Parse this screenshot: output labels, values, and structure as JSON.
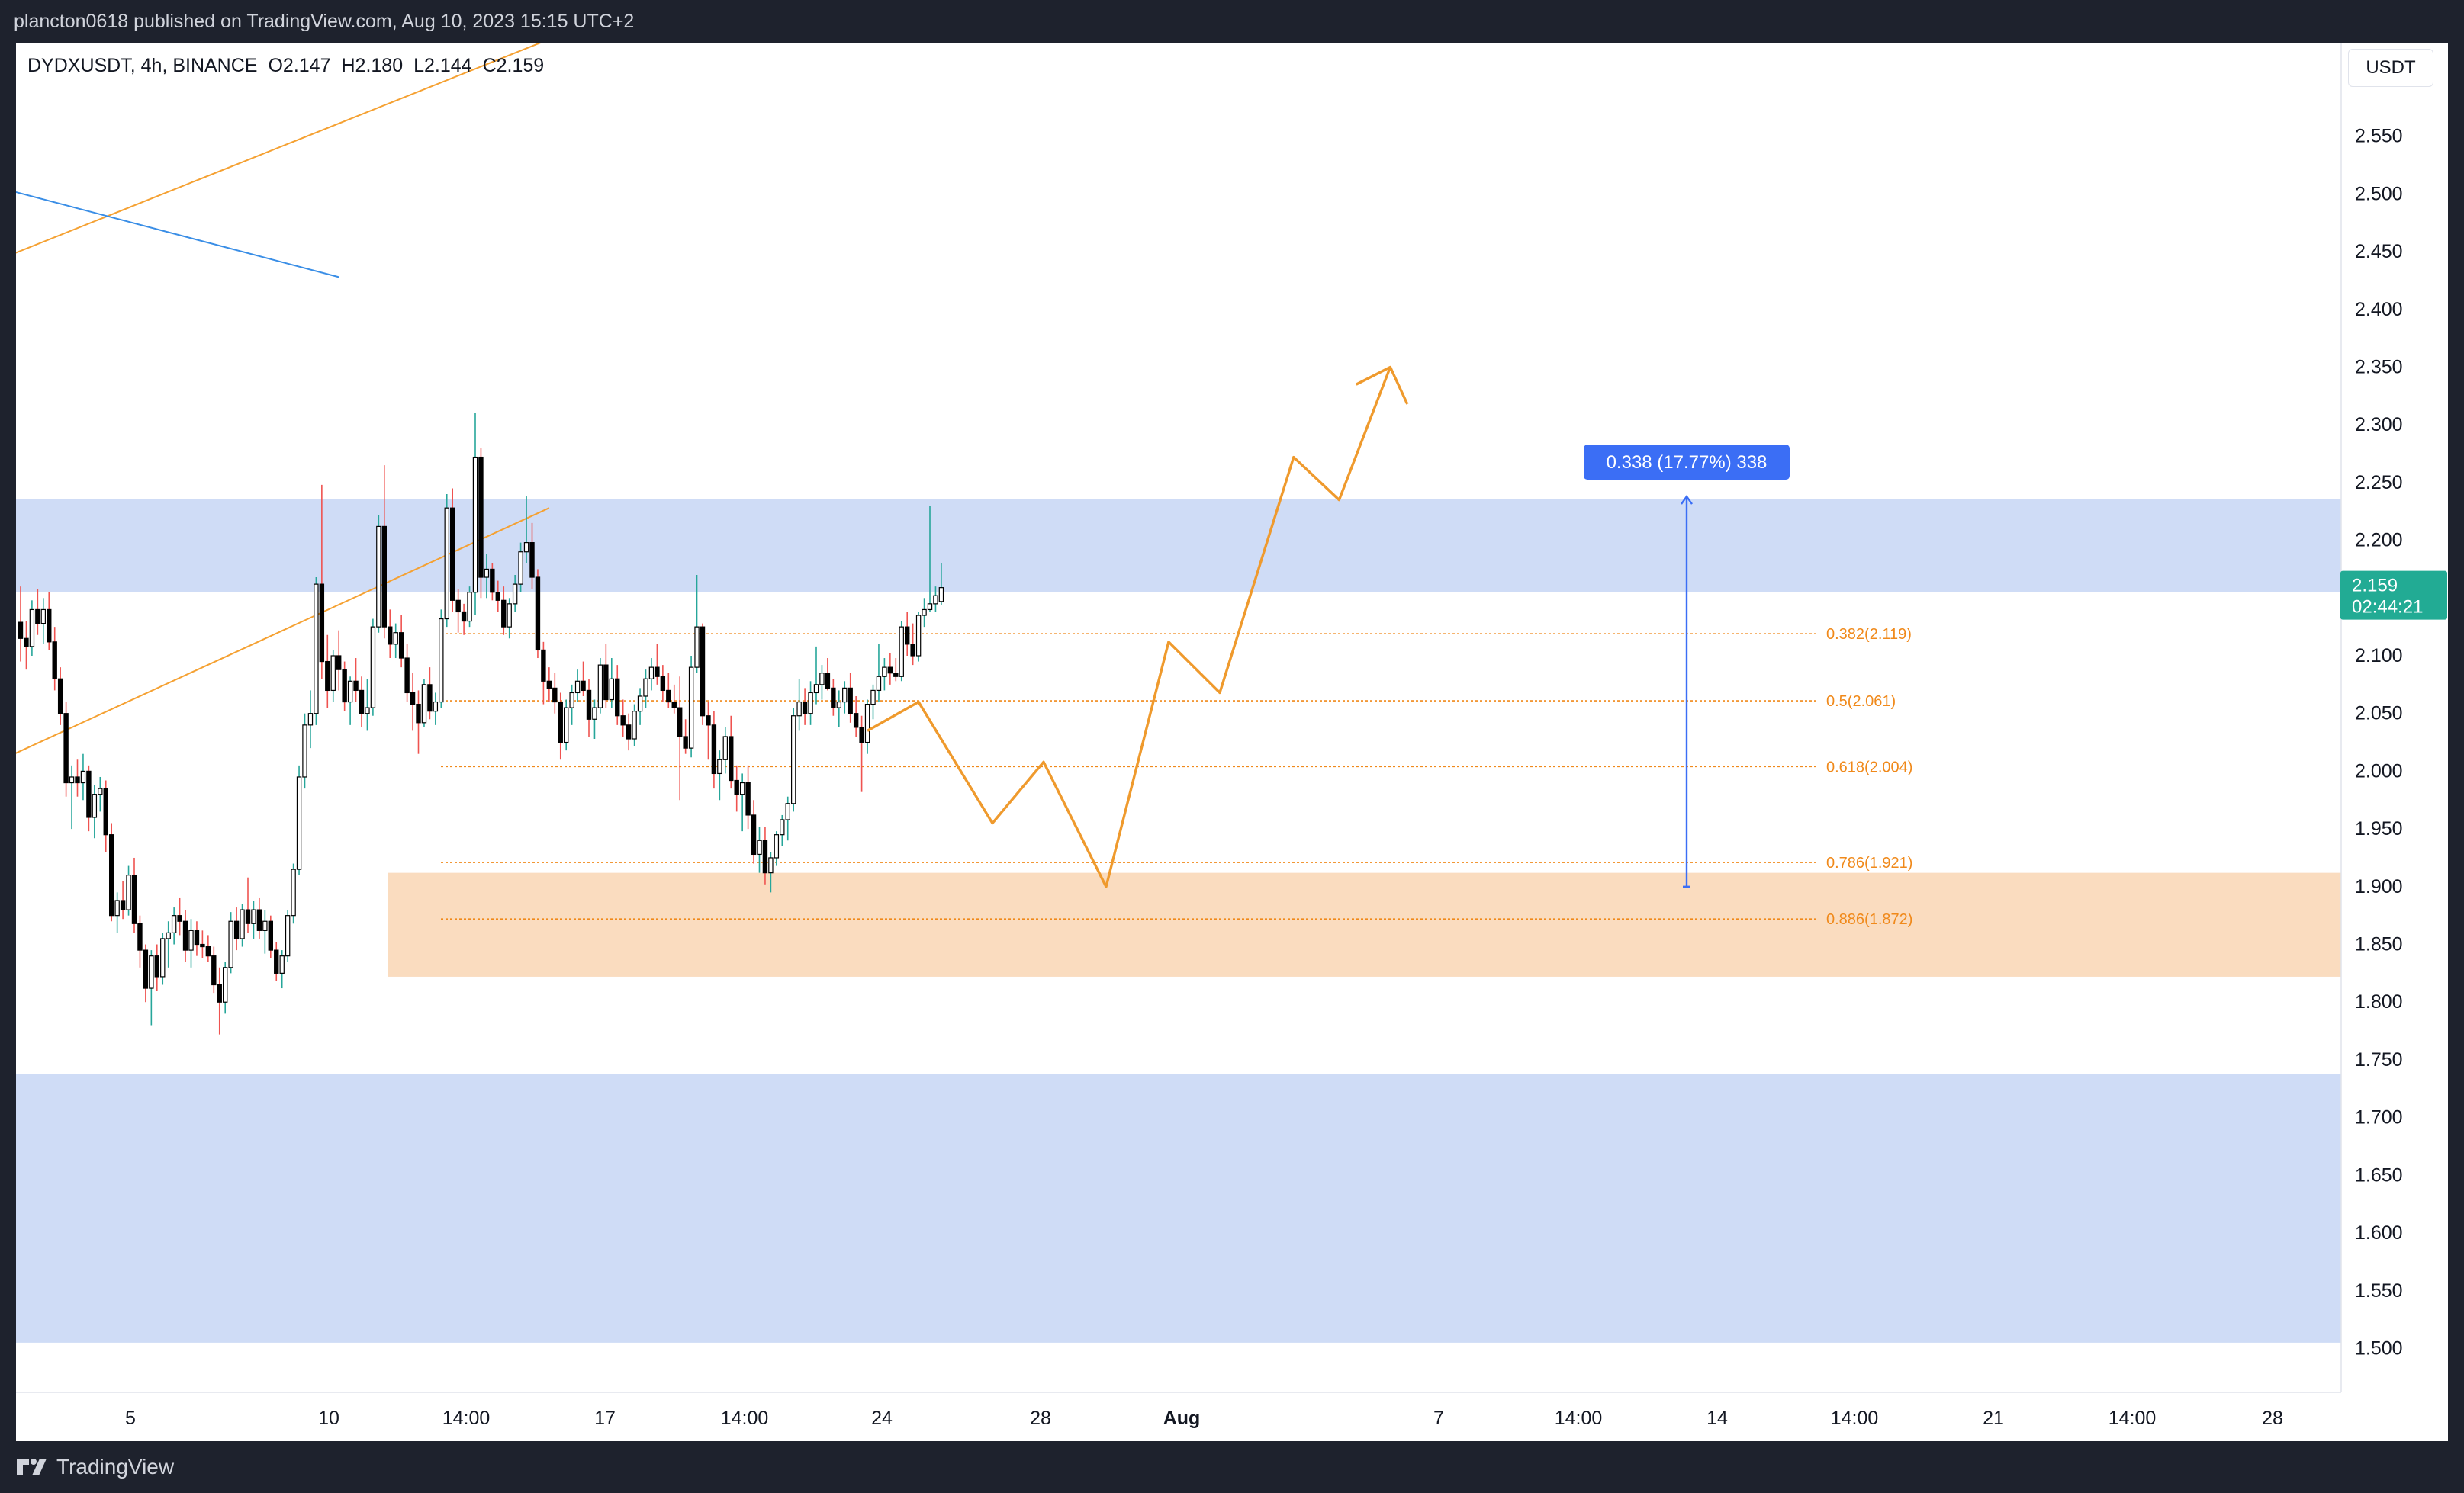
{
  "header": {
    "title": "plancton0618 published on TradingView.com, Aug 10, 2023 15:15 UTC+2"
  },
  "legend": {
    "symbol": "DYDXUSDT, 4h, BINANCE",
    "open": "O2.147",
    "high": "H2.180",
    "low": "L2.144",
    "close": "C2.159"
  },
  "currency": "USDT",
  "footer": {
    "brand": "TradingView"
  },
  "colors": {
    "up": "#26a69a",
    "down": "#ef5350",
    "candle_body_up": "#ffffff",
    "candle_body_down": "#000000",
    "zone_blue": "#cfdcf6",
    "zone_orange": "#fadcbf",
    "fib": "#f0891a",
    "trend_orange": "#f5a132",
    "trend_blue": "#3a8ee6",
    "measure": "#3b6ef5",
    "price_badge": "#22ab94"
  },
  "chart_data": {
    "type": "candlestick",
    "symbol": "DYDXUSDT",
    "timeframe": "4h",
    "exchange": "BINANCE",
    "ylim": [
      1.462,
      2.631
    ],
    "y_ticks": [
      "2.550",
      "2.500",
      "2.450",
      "2.400",
      "2.350",
      "2.300",
      "2.250",
      "2.200",
      "2.150",
      "2.100",
      "2.050",
      "2.000",
      "1.950",
      "1.900",
      "1.850",
      "1.800",
      "1.750",
      "1.700",
      "1.650",
      "1.600",
      "1.550",
      "1.500"
    ],
    "x_ticks": [
      "5",
      "10",
      "14:00",
      "17",
      "14:00",
      "24",
      "28",
      "Aug",
      "7",
      "14:00",
      "14",
      "14:00",
      "21",
      "14:00",
      "28"
    ],
    "x_tick_bold": "Aug",
    "last_price": {
      "value": 2.159,
      "label": "2.159",
      "countdown": "02:44:21"
    },
    "zones": [
      {
        "name": "resistance-zone",
        "color": "blue",
        "from": 2.155,
        "to": 2.236,
        "x_start": 0,
        "x_end": 1
      },
      {
        "name": "demand-zone",
        "color": "orange",
        "from": 1.822,
        "to": 1.912,
        "x_start": 0.16,
        "x_end": 1
      },
      {
        "name": "lower-zone",
        "color": "blue",
        "from": 1.505,
        "to": 1.738,
        "x_start": 0,
        "x_end": 1
      }
    ],
    "fib_levels": [
      {
        "ratio": 0.382,
        "value": 2.119,
        "label": "0.382(2.119)"
      },
      {
        "ratio": 0.5,
        "value": 2.061,
        "label": "0.5(2.061)"
      },
      {
        "ratio": 0.618,
        "value": 2.004,
        "label": "0.618(2.004)"
      },
      {
        "ratio": 0.786,
        "value": 1.921,
        "label": "0.786(1.921)"
      },
      {
        "ratio": 0.886,
        "value": 1.872,
        "label": "0.886(1.872)"
      }
    ],
    "measure": {
      "label": "0.338 (17.77%) 338",
      "from": 1.9,
      "to": 2.238
    },
    "candles": [
      [
        2.129,
        2.16,
        2.095,
        2.115
      ],
      [
        2.115,
        2.13,
        2.088,
        2.108
      ],
      [
        2.108,
        2.148,
        2.1,
        2.14
      ],
      [
        2.14,
        2.158,
        2.118,
        2.128
      ],
      [
        2.128,
        2.15,
        2.11,
        2.14
      ],
      [
        2.14,
        2.155,
        2.105,
        2.112
      ],
      [
        2.112,
        2.125,
        2.07,
        2.08
      ],
      [
        2.08,
        2.09,
        2.04,
        2.05
      ],
      [
        2.05,
        2.06,
        1.978,
        1.99
      ],
      [
        1.99,
        2.005,
        1.95,
        1.995
      ],
      [
        1.995,
        2.01,
        1.978,
        1.99
      ],
      [
        1.99,
        2.015,
        1.975,
        2.0
      ],
      [
        2.0,
        2.005,
        1.948,
        1.96
      ],
      [
        1.96,
        1.988,
        1.942,
        1.98
      ],
      [
        1.98,
        1.995,
        1.965,
        1.985
      ],
      [
        1.985,
        1.992,
        1.93,
        1.945
      ],
      [
        1.945,
        1.955,
        1.87,
        1.875
      ],
      [
        1.875,
        1.895,
        1.86,
        1.888
      ],
      [
        1.888,
        1.905,
        1.872,
        1.88
      ],
      [
        1.88,
        1.918,
        1.875,
        1.91
      ],
      [
        1.91,
        1.925,
        1.86,
        1.868
      ],
      [
        1.868,
        1.875,
        1.83,
        1.845
      ],
      [
        1.845,
        1.85,
        1.8,
        1.812
      ],
      [
        1.812,
        1.845,
        1.78,
        1.84
      ],
      [
        1.84,
        1.85,
        1.81,
        1.822
      ],
      [
        1.822,
        1.86,
        1.815,
        1.855
      ],
      [
        1.855,
        1.87,
        1.83,
        1.86
      ],
      [
        1.86,
        1.882,
        1.85,
        1.875
      ],
      [
        1.875,
        1.89,
        1.858,
        1.87
      ],
      [
        1.87,
        1.88,
        1.835,
        1.845
      ],
      [
        1.845,
        1.872,
        1.83,
        1.862
      ],
      [
        1.862,
        1.87,
        1.84,
        1.85
      ],
      [
        1.85,
        1.862,
        1.838,
        1.848
      ],
      [
        1.848,
        1.858,
        1.835,
        1.84
      ],
      [
        1.84,
        1.848,
        1.808,
        1.815
      ],
      [
        1.815,
        1.83,
        1.772,
        1.8
      ],
      [
        1.8,
        1.835,
        1.79,
        1.83
      ],
      [
        1.83,
        1.878,
        1.825,
        1.87
      ],
      [
        1.87,
        1.882,
        1.845,
        1.855
      ],
      [
        1.855,
        1.885,
        1.848,
        1.88
      ],
      [
        1.88,
        1.908,
        1.86,
        1.868
      ],
      [
        1.868,
        1.888,
        1.855,
        1.88
      ],
      [
        1.88,
        1.89,
        1.855,
        1.862
      ],
      [
        1.862,
        1.88,
        1.842,
        1.87
      ],
      [
        1.87,
        1.875,
        1.838,
        1.845
      ],
      [
        1.845,
        1.852,
        1.818,
        1.825
      ],
      [
        1.825,
        1.845,
        1.812,
        1.84
      ],
      [
        1.84,
        1.88,
        1.835,
        1.875
      ],
      [
        1.875,
        1.92,
        1.868,
        1.915
      ],
      [
        1.915,
        2.005,
        1.91,
        1.995
      ],
      [
        1.995,
        2.05,
        1.985,
        2.04
      ],
      [
        2.04,
        2.07,
        2.02,
        2.05
      ],
      [
        2.05,
        2.168,
        2.04,
        2.162
      ],
      [
        2.162,
        2.248,
        2.08,
        2.095
      ],
      [
        2.095,
        2.118,
        2.055,
        2.07
      ],
      [
        2.07,
        2.105,
        2.06,
        2.1
      ],
      [
        2.1,
        2.122,
        2.07,
        2.088
      ],
      [
        2.088,
        2.095,
        2.052,
        2.06
      ],
      [
        2.06,
        2.082,
        2.04,
        2.078
      ],
      [
        2.078,
        2.098,
        2.06,
        2.07
      ],
      [
        2.07,
        2.082,
        2.038,
        2.05
      ],
      [
        2.05,
        2.08,
        2.035,
        2.055
      ],
      [
        2.055,
        2.132,
        2.048,
        2.125
      ],
      [
        2.125,
        2.222,
        2.12,
        2.212
      ],
      [
        2.212,
        2.265,
        2.115,
        2.125
      ],
      [
        2.125,
        2.14,
        2.098,
        2.11
      ],
      [
        2.11,
        2.128,
        2.098,
        2.12
      ],
      [
        2.12,
        2.135,
        2.09,
        2.098
      ],
      [
        2.098,
        2.11,
        2.06,
        2.068
      ],
      [
        2.068,
        2.085,
        2.035,
        2.058
      ],
      [
        2.058,
        2.07,
        2.015,
        2.042
      ],
      [
        2.042,
        2.08,
        2.038,
        2.075
      ],
      [
        2.075,
        2.09,
        2.045,
        2.052
      ],
      [
        2.052,
        2.068,
        2.04,
        2.06
      ],
      [
        2.06,
        2.14,
        2.055,
        2.132
      ],
      [
        2.132,
        2.24,
        2.125,
        2.228
      ],
      [
        2.228,
        2.245,
        2.138,
        2.148
      ],
      [
        2.148,
        2.158,
        2.12,
        2.138
      ],
      [
        2.138,
        2.145,
        2.118,
        2.13
      ],
      [
        2.13,
        2.16,
        2.125,
        2.155
      ],
      [
        2.155,
        2.31,
        2.135,
        2.272
      ],
      [
        2.272,
        2.28,
        2.15,
        2.168
      ],
      [
        2.168,
        2.188,
        2.15,
        2.175
      ],
      [
        2.175,
        2.18,
        2.148,
        2.155
      ],
      [
        2.155,
        2.165,
        2.138,
        2.148
      ],
      [
        2.148,
        2.16,
        2.118,
        2.125
      ],
      [
        2.125,
        2.15,
        2.115,
        2.145
      ],
      [
        2.145,
        2.17,
        2.138,
        2.162
      ],
      [
        2.162,
        2.198,
        2.155,
        2.19
      ],
      [
        2.19,
        2.238,
        2.18,
        2.198
      ],
      [
        2.198,
        2.215,
        2.158,
        2.168
      ],
      [
        2.168,
        2.175,
        2.098,
        2.105
      ],
      [
        2.105,
        2.112,
        2.058,
        2.078
      ],
      [
        2.078,
        2.09,
        2.06,
        2.072
      ],
      [
        2.072,
        2.085,
        2.05,
        2.06
      ],
      [
        2.06,
        2.068,
        2.01,
        2.025
      ],
      [
        2.025,
        2.062,
        2.018,
        2.055
      ],
      [
        2.055,
        2.075,
        2.04,
        2.068
      ],
      [
        2.068,
        2.088,
        2.06,
        2.078
      ],
      [
        2.078,
        2.095,
        2.065,
        2.07
      ],
      [
        2.07,
        2.08,
        2.03,
        2.045
      ],
      [
        2.045,
        2.062,
        2.028,
        2.055
      ],
      [
        2.055,
        2.098,
        2.05,
        2.092
      ],
      [
        2.092,
        2.11,
        2.055,
        2.062
      ],
      [
        2.062,
        2.098,
        2.055,
        2.08
      ],
      [
        2.08,
        2.092,
        2.04,
        2.048
      ],
      [
        2.048,
        2.062,
        2.03,
        2.04
      ],
      [
        2.04,
        2.05,
        2.018,
        2.028
      ],
      [
        2.028,
        2.058,
        2.022,
        2.052
      ],
      [
        2.052,
        2.072,
        2.04,
        2.065
      ],
      [
        2.065,
        2.088,
        2.055,
        2.08
      ],
      [
        2.08,
        2.098,
        2.07,
        2.09
      ],
      [
        2.09,
        2.11,
        2.075,
        2.082
      ],
      [
        2.082,
        2.092,
        2.06,
        2.07
      ],
      [
        2.07,
        2.085,
        2.055,
        2.06
      ],
      [
        2.06,
        2.075,
        2.05,
        2.055
      ],
      [
        2.055,
        2.082,
        1.975,
        2.03
      ],
      [
        2.03,
        2.045,
        2.015,
        2.02
      ],
      [
        2.02,
        2.1,
        2.012,
        2.09
      ],
      [
        2.09,
        2.17,
        2.085,
        2.125
      ],
      [
        2.125,
        2.128,
        2.04,
        2.048
      ],
      [
        2.048,
        2.06,
        2.01,
        2.04
      ],
      [
        2.04,
        2.052,
        1.985,
        1.998
      ],
      [
        1.998,
        2.018,
        1.975,
        2.01
      ],
      [
        2.01,
        2.038,
        1.998,
        2.03
      ],
      [
        2.03,
        2.048,
        1.985,
        1.992
      ],
      [
        1.992,
        2.005,
        1.965,
        1.98
      ],
      [
        1.98,
        1.998,
        1.948,
        1.99
      ],
      [
        1.99,
        2.005,
        1.95,
        1.962
      ],
      [
        1.962,
        1.975,
        1.92,
        1.928
      ],
      [
        1.928,
        1.952,
        1.912,
        1.94
      ],
      [
        1.94,
        1.952,
        1.902,
        1.912
      ],
      [
        1.912,
        1.93,
        1.895,
        1.925
      ],
      [
        1.925,
        1.948,
        1.918,
        1.945
      ],
      [
        1.945,
        1.962,
        1.935,
        1.958
      ],
      [
        1.958,
        1.978,
        1.94,
        1.972
      ],
      [
        1.972,
        2.055,
        1.965,
        2.048
      ],
      [
        2.048,
        2.08,
        2.035,
        2.06
      ],
      [
        2.06,
        2.072,
        2.04,
        2.05
      ],
      [
        2.05,
        2.078,
        2.04,
        2.068
      ],
      [
        2.068,
        2.108,
        2.058,
        2.075
      ],
      [
        2.075,
        2.092,
        2.062,
        2.085
      ],
      [
        2.085,
        2.098,
        2.07,
        2.072
      ],
      [
        2.072,
        2.08,
        2.048,
        2.055
      ],
      [
        2.055,
        2.07,
        2.038,
        2.06
      ],
      [
        2.06,
        2.078,
        2.05,
        2.072
      ],
      [
        2.072,
        2.085,
        2.042,
        2.05
      ],
      [
        2.05,
        2.065,
        2.03,
        2.038
      ],
      [
        2.038,
        2.048,
        1.982,
        2.025
      ],
      [
        2.025,
        2.062,
        2.015,
        2.058
      ],
      [
        2.058,
        2.075,
        2.045,
        2.07
      ],
      [
        2.07,
        2.11,
        2.06,
        2.082
      ],
      [
        2.082,
        2.098,
        2.07,
        2.09
      ],
      [
        2.09,
        2.102,
        2.075,
        2.085
      ],
      [
        2.085,
        2.098,
        2.078,
        2.082
      ],
      [
        2.082,
        2.13,
        2.078,
        2.125
      ],
      [
        2.125,
        2.138,
        2.1,
        2.11
      ],
      [
        2.11,
        2.128,
        2.092,
        2.1
      ],
      [
        2.1,
        2.138,
        2.095,
        2.135
      ],
      [
        2.135,
        2.15,
        2.125,
        2.14
      ],
      [
        2.14,
        2.23,
        2.138,
        2.145
      ],
      [
        2.145,
        2.16,
        2.138,
        2.152
      ],
      [
        2.147,
        2.18,
        2.144,
        2.159
      ]
    ],
    "pattern_path": [
      [
        -13,
        2.035
      ],
      [
        -4,
        2.06
      ],
      [
        9,
        1.955
      ],
      [
        18,
        2.008
      ],
      [
        29,
        1.9
      ],
      [
        40,
        2.112
      ],
      [
        49,
        2.068
      ],
      [
        62,
        2.272
      ],
      [
        70,
        2.235
      ],
      [
        79,
        2.35
      ]
    ],
    "pattern_arrowhead": [
      [
        73,
        2.335
      ],
      [
        79,
        2.35
      ],
      [
        82,
        2.318
      ]
    ],
    "trend_lines": [
      {
        "name": "channel-top",
        "color": "orange",
        "from": [
          -150,
          2.155
        ],
        "to": [
          92,
          2.632
        ]
      },
      {
        "name": "channel-bottom",
        "color": "orange",
        "from": [
          -150,
          1.678
        ],
        "to": [
          93,
          2.228
        ]
      },
      {
        "name": "downtrend",
        "color": "blue",
        "from": [
          -100,
          2.63
        ],
        "to": [
          56,
          2.428
        ]
      }
    ]
  }
}
